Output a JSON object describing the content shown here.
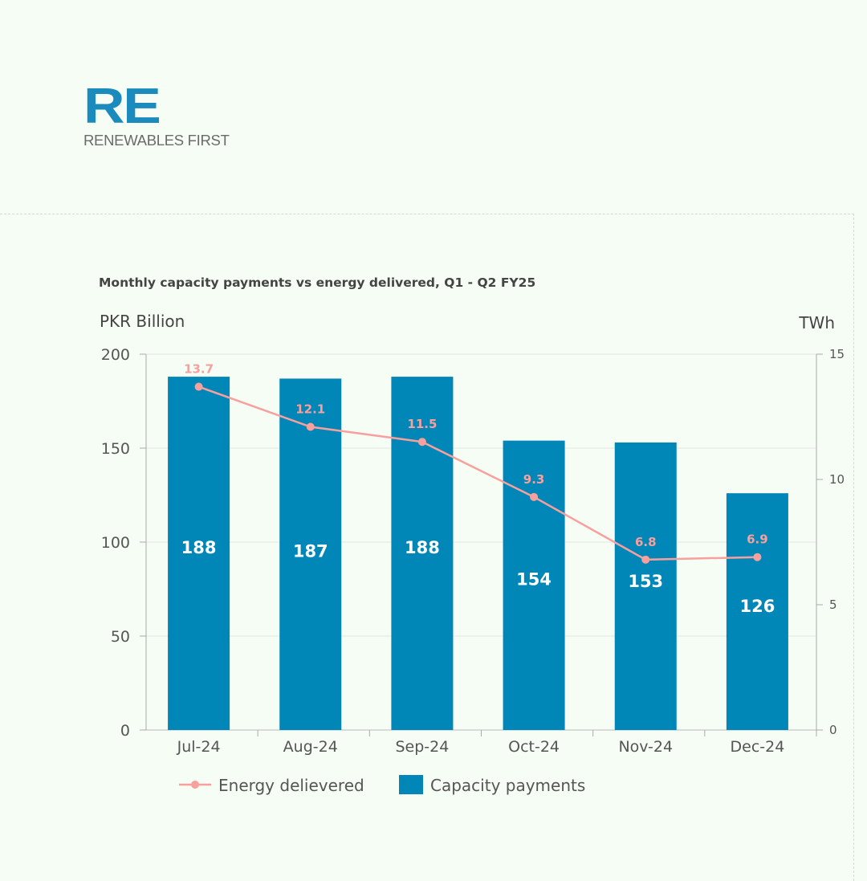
{
  "logo": {
    "mark": "RE",
    "text": "RENEWABLES FIRST"
  },
  "chart_data": {
    "type": "bar+line",
    "title": "Monthly capacity payments vs energy delivered, Q1 - Q2 FY25",
    "ylabel_left": "PKR Billion",
    "ylabel_right": "TWh",
    "categories": [
      "Jul-24",
      "Aug-24",
      "Sep-24",
      "Oct-24",
      "Nov-24",
      "Dec-24"
    ],
    "ylim_left": [
      0,
      200
    ],
    "ylim_right": [
      0,
      15
    ],
    "yticks_left": [
      "0",
      "50",
      "100",
      "150",
      "200"
    ],
    "yticks_right": [
      "0",
      "5",
      "10",
      "15"
    ],
    "grid": true,
    "legend_position": "bottom",
    "series": [
      {
        "name": "Energy delievered",
        "type": "line",
        "axis": "right",
        "color": "#f7a09d",
        "values": [
          13.7,
          12.1,
          11.5,
          9.3,
          6.8,
          6.9
        ]
      },
      {
        "name": "Capacity payments",
        "type": "bar",
        "axis": "left",
        "color": "#0087b8",
        "values": [
          188,
          187,
          188,
          154,
          153,
          126
        ]
      }
    ]
  }
}
